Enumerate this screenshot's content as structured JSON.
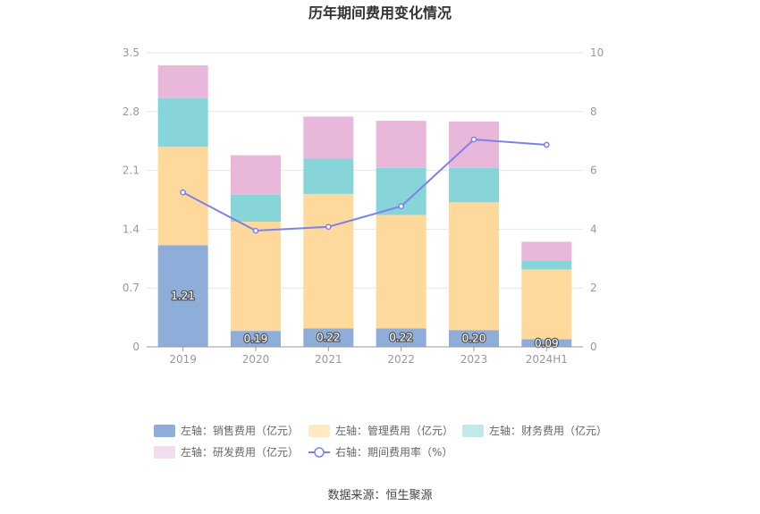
{
  "chart_data": {
    "type": "bar",
    "title": "历年期间费用变化情况",
    "categories": [
      "2019",
      "2020",
      "2021",
      "2022",
      "2023",
      "2024H1"
    ],
    "series": [
      {
        "name": "左轴：销售费用（亿元）",
        "axis": "left",
        "kind": "bar",
        "color": "#8eadd9",
        "values": [
          1.21,
          0.19,
          0.22,
          0.22,
          0.2,
          0.09
        ],
        "labels": [
          "1.21",
          "0.19",
          "0.22",
          "0.22",
          "0.20",
          "0.09"
        ]
      },
      {
        "name": "左轴：管理费用（亿元）",
        "axis": "left",
        "kind": "bar",
        "color": "#ffd99c",
        "legend_color": "#ffe9c4",
        "values": [
          1.17,
          1.3,
          1.6,
          1.35,
          1.52,
          0.83
        ]
      },
      {
        "name": "左轴：财务费用（亿元）",
        "axis": "left",
        "kind": "bar",
        "color": "#88d5d9",
        "legend_color": "#bfe9eb",
        "values": [
          0.58,
          0.32,
          0.42,
          0.56,
          0.41,
          0.11
        ]
      },
      {
        "name": "左轴：研发费用（亿元）",
        "axis": "left",
        "kind": "bar",
        "color": "#e8b7da",
        "legend_color": "#f3dcec",
        "values": [
          0.39,
          0.47,
          0.5,
          0.56,
          0.55,
          0.22
        ]
      },
      {
        "name": "右轴：期间费用率（%）",
        "axis": "right",
        "kind": "line",
        "color": "#7b83ea",
        "values": [
          5.25,
          3.95,
          4.08,
          4.78,
          7.05,
          6.87
        ]
      }
    ],
    "left_axis": {
      "min": 0,
      "max": 3.5,
      "ticks": [
        "0",
        "0.7",
        "1.4",
        "2.1",
        "2.8",
        "3.5"
      ]
    },
    "right_axis": {
      "min": 0,
      "max": 10,
      "ticks": [
        "0",
        "2",
        "4",
        "6",
        "8",
        "10"
      ]
    },
    "grid": true,
    "legend_position": "bottom"
  },
  "footer": {
    "source": "数据来源：恒生聚源"
  }
}
